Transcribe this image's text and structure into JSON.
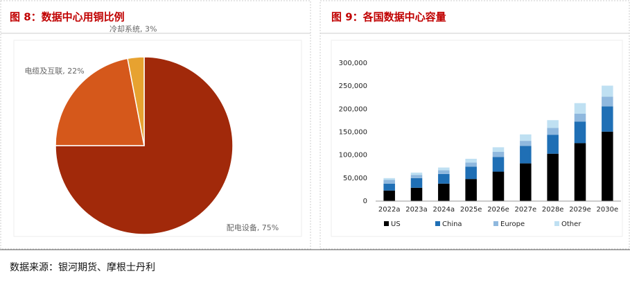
{
  "chart_data": [
    {
      "type": "pie",
      "title": "图 8：数据中心用铜比例",
      "categories": [
        "配电设备",
        "电缆及互联",
        "冷却系统"
      ],
      "values": [
        75,
        22,
        3
      ],
      "value_labels": [
        "配电设备, 75%",
        "电缆及互联, 22%",
        "冷却系统, 3%"
      ],
      "colors": [
        "#a1290a",
        "#d5581b",
        "#e7a230"
      ]
    },
    {
      "type": "stacked_bar",
      "title": "图 9：各国数据中心容量",
      "categories": [
        "2022a",
        "2023a",
        "2024a",
        "2025e",
        "2026e",
        "2027e",
        "2028e",
        "2029e",
        "2030e"
      ],
      "series": [
        {
          "name": "US",
          "color": "#000000",
          "values": [
            23000,
            29000,
            38000,
            48000,
            64000,
            82000,
            103000,
            126000,
            151000
          ]
        },
        {
          "name": "China",
          "color": "#1f6fb5",
          "values": [
            15000,
            21000,
            21000,
            27000,
            32000,
            38000,
            41000,
            47000,
            55000
          ]
        },
        {
          "name": "Europe",
          "color": "#8fb8de",
          "values": [
            8000,
            7000,
            8000,
            9000,
            11000,
            11000,
            15000,
            17000,
            21000
          ]
        },
        {
          "name": "Other",
          "color": "#bfe0f2",
          "values": [
            4000,
            5000,
            6000,
            8000,
            10000,
            14000,
            17000,
            23000,
            24000
          ]
        }
      ],
      "ylim": [
        0,
        300000
      ],
      "yticks": [
        0,
        {
          "value": 50000,
          "label": "50,000"
        },
        {
          "value": 100000,
          "label": "100,000"
        },
        {
          "value": 150000,
          "label": "150,000"
        },
        {
          "value": 200000,
          "label": "200,000"
        },
        {
          "value": 250000,
          "label": "250,000"
        },
        {
          "value": 300000,
          "label": "300,000"
        }
      ],
      "legend": "bottom"
    }
  ],
  "source": "数据来源：银河期货、摩根士丹利"
}
